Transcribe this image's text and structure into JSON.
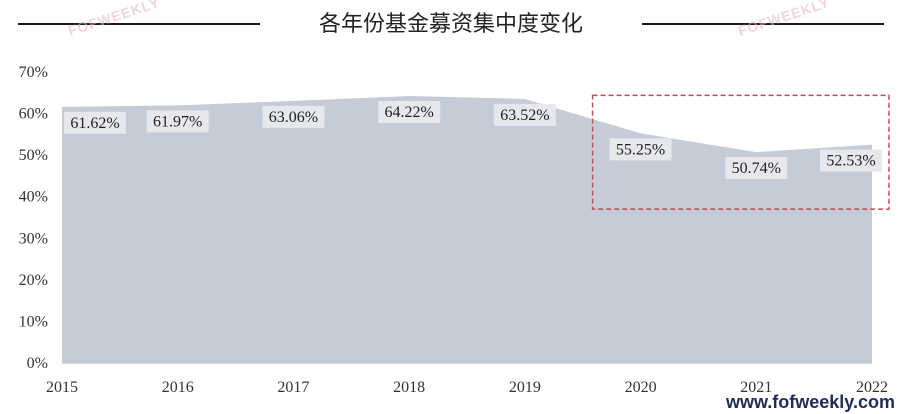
{
  "title": "各年份基金募资集中度变化",
  "watermark": "FOFWEEKLY",
  "site": "www.fofweekly.com",
  "colors": {
    "area": "#c5ccd8",
    "label_bg": "#e6e8ec",
    "rule": "#1a1a1a",
    "highlight": "#c0504d"
  },
  "chart_data": {
    "type": "area",
    "x": [
      "2015",
      "2016",
      "2017",
      "2018",
      "2019",
      "2020",
      "2021",
      "2022"
    ],
    "values": [
      61.62,
      61.97,
      63.06,
      64.22,
      63.52,
      55.25,
      50.74,
      52.53
    ],
    "data_labels": [
      "61.62%",
      "61.97%",
      "63.06%",
      "64.22%",
      "63.52%",
      "55.25%",
      "50.74%",
      "52.53%"
    ],
    "ylim": [
      0,
      70
    ],
    "yticks": [
      0,
      10,
      20,
      30,
      40,
      50,
      60,
      70
    ],
    "ytick_labels": [
      "0%",
      "10%",
      "20%",
      "30%",
      "40%",
      "50%",
      "60%",
      "70%"
    ],
    "grid": false,
    "legend": "none",
    "highlight_range": [
      "2020",
      "2022"
    ]
  }
}
